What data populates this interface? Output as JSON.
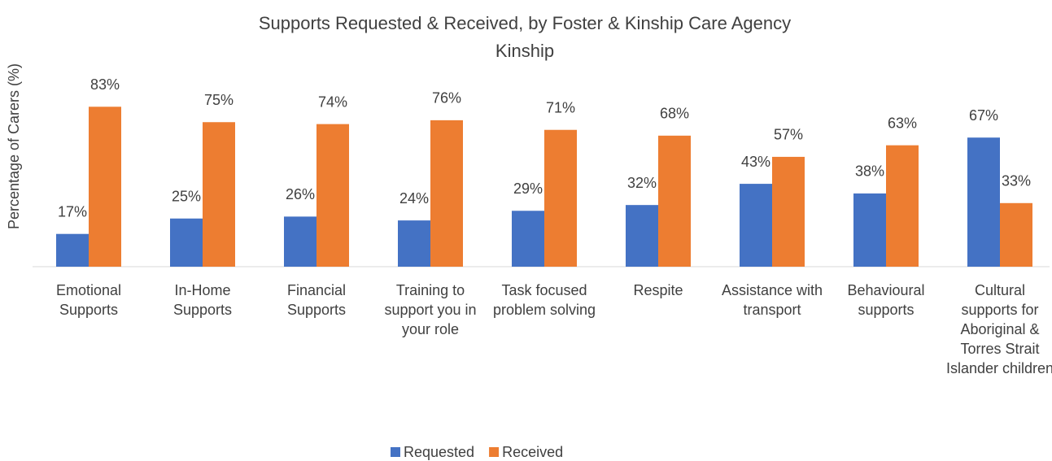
{
  "chart_data": {
    "type": "bar",
    "title": "Supports Requested & Received, by Foster & Kinship Care Agency",
    "subtitle": "Kinship",
    "y_label": "Percentage of Carers (%)",
    "categories": [
      "Emotional Supports",
      "In-Home Supports",
      "Financial Supports",
      "Training to support you in your role",
      "Task focused problem solving",
      "Respite",
      "Assistance with transport",
      "Behavioural supports",
      "Cultural supports for Aboriginal & Torres Strait Islander children"
    ],
    "series": [
      {
        "name": "Requested",
        "color": "#4472c4",
        "values": [
          17,
          25,
          26,
          24,
          29,
          32,
          43,
          38,
          67
        ],
        "value_labels": [
          "17%",
          "25%",
          "26%",
          "24%",
          "29%",
          "32%",
          "43%",
          "38%",
          "67%"
        ]
      },
      {
        "name": "Received",
        "color": "#ed7d31",
        "values": [
          83,
          75,
          74,
          76,
          71,
          68,
          57,
          63,
          33
        ],
        "value_labels": [
          "83%",
          "75%",
          "74%",
          "76%",
          "71%",
          "68%",
          "57%",
          "63%",
          "33%"
        ]
      }
    ],
    "ylim": [
      0,
      100
    ]
  }
}
